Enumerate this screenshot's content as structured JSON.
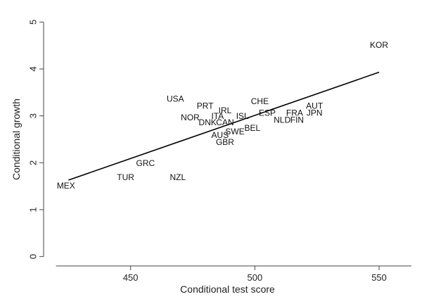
{
  "chart_data": {
    "type": "scatter",
    "title": "",
    "xlabel": "Conditional test score",
    "ylabel": "Conditional growth",
    "xlim": [
      415,
      563
    ],
    "ylim": [
      -0.2,
      5.2
    ],
    "xticks": [
      450,
      500,
      550
    ],
    "yticks": [
      0,
      1,
      2,
      3,
      4,
      5
    ],
    "grid": false,
    "points": [
      {
        "label": "KOR",
        "x": 550,
        "y": 4.5
      },
      {
        "label": "USA",
        "x": 468,
        "y": 3.35
      },
      {
        "label": "CHE",
        "x": 502,
        "y": 3.3
      },
      {
        "label": "AUT",
        "x": 524,
        "y": 3.2
      },
      {
        "label": "PRT",
        "x": 480,
        "y": 3.2
      },
      {
        "label": "IRL",
        "x": 488,
        "y": 3.1
      },
      {
        "label": "ESP",
        "x": 505,
        "y": 3.05
      },
      {
        "label": "FRA",
        "x": 516,
        "y": 3.05
      },
      {
        "label": "JPN",
        "x": 524,
        "y": 3.05
      },
      {
        "label": "NOR",
        "x": 474,
        "y": 2.95
      },
      {
        "label": "ITA",
        "x": 485,
        "y": 2.98
      },
      {
        "label": "ISL",
        "x": 495,
        "y": 2.98
      },
      {
        "label": "NLD",
        "x": 511,
        "y": 2.9
      },
      {
        "label": "FIN",
        "x": 517,
        "y": 2.9
      },
      {
        "label": "DNK",
        "x": 481,
        "y": 2.85
      },
      {
        "label": "CAN",
        "x": 488,
        "y": 2.85
      },
      {
        "label": "BEL",
        "x": 499,
        "y": 2.73
      },
      {
        "label": "SWE",
        "x": 492,
        "y": 2.65
      },
      {
        "label": "AUS",
        "x": 486,
        "y": 2.58
      },
      {
        "label": "GBR",
        "x": 488,
        "y": 2.43
      },
      {
        "label": "GRC",
        "x": 456,
        "y": 1.98
      },
      {
        "label": "TUR",
        "x": 448,
        "y": 1.68
      },
      {
        "label": "NZL",
        "x": 469,
        "y": 1.68
      },
      {
        "label": "MEX",
        "x": 424,
        "y": 1.5
      }
    ],
    "fit_line": {
      "x": [
        425,
        550
      ],
      "y": [
        1.63,
        3.93
      ]
    }
  }
}
